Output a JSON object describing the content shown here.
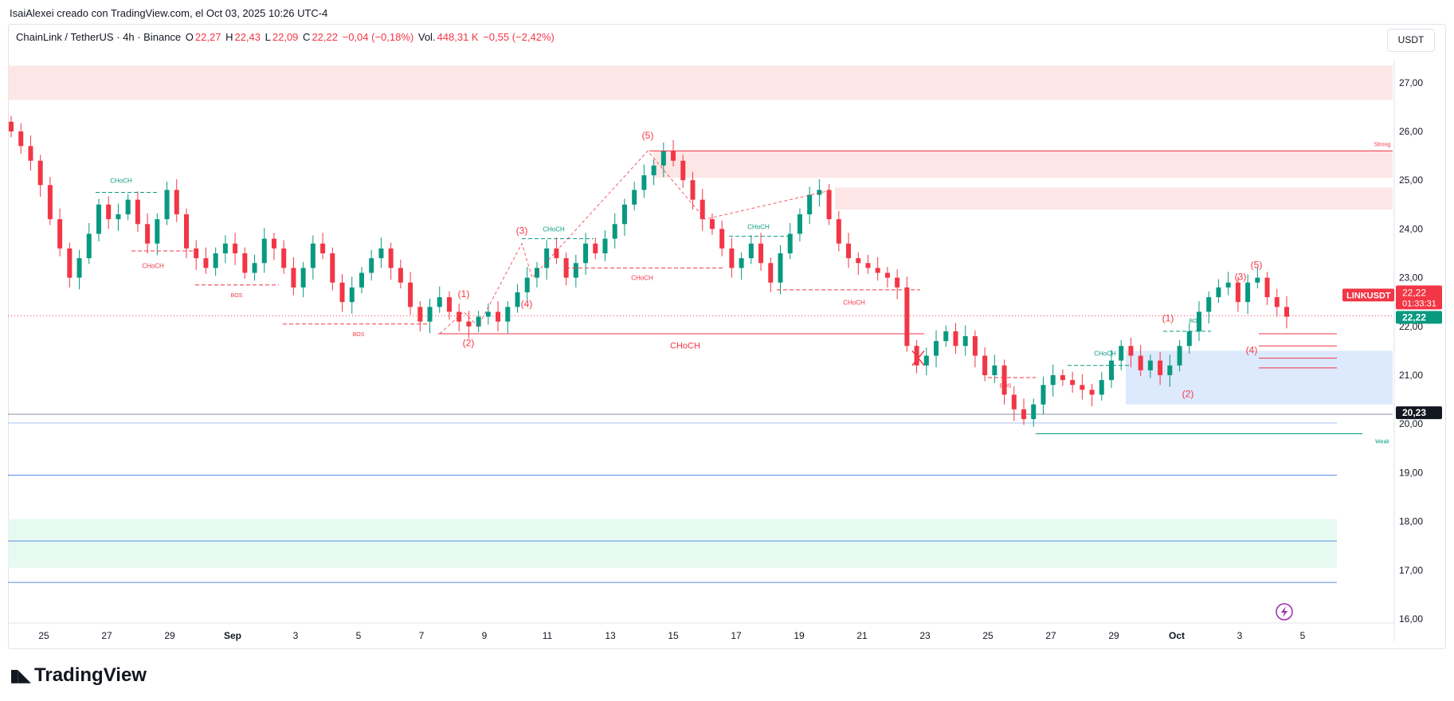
{
  "header": {
    "credit": "IsaiAlexei creado con TradingView.com, el Oct 03, 2025 10:26 UTC-4"
  },
  "legend": {
    "symbol": "ChainLink / TetherUS · 4h · Binance",
    "o_label": "O",
    "o": "22,27",
    "h_label": "H",
    "h": "22,43",
    "l_label": "L",
    "l": "22,09",
    "c_label": "C",
    "c": "22,22",
    "change": "−0,04 (−0,18%)",
    "vol_label": "Vol.",
    "vol": "448,31 K",
    "vol_change": "−0,55 (−2,42%)"
  },
  "currency_button": "USDT",
  "brand": "TradingView",
  "colors": {
    "up": "#089981",
    "down": "#f23645",
    "supply_zone": "#fde2e2",
    "demand_zone": "#e3f9ef",
    "blue_zone": "#d7e5fd",
    "blue_line": "#5b8ce6"
  },
  "chart_data": {
    "type": "candlestick",
    "timeframe": "4h",
    "ylim": [
      15.75,
      27.5
    ],
    "price_ticks": [
      "16,00",
      "17,00",
      "18,00",
      "19,00",
      "20,00",
      "21,00",
      "22,00",
      "23,00",
      "24,00",
      "25,00",
      "26,00",
      "27,00"
    ],
    "x_ticks": [
      "25",
      "27",
      "29",
      "Sep",
      "3",
      "5",
      "7",
      "9",
      "11",
      "13",
      "15",
      "17",
      "19",
      "21",
      "23",
      "25",
      "27",
      "29",
      "Oct",
      "3",
      "5"
    ],
    "last_price": {
      "symbol": "LINKUSDT",
      "price": "22,22",
      "countdown": "01:33:31",
      "value": 22.22
    },
    "marker_price": {
      "label": "22,22",
      "value": 22.22
    },
    "level_price": {
      "label": "20,23",
      "value": 20.23
    },
    "zones": [
      {
        "type": "supply",
        "from": 26.65,
        "to": 27.35
      },
      {
        "type": "supply",
        "from": 25.05,
        "to": 25.6
      },
      {
        "type": "supply",
        "from": 24.4,
        "to": 24.85
      },
      {
        "type": "demand",
        "from": 17.05,
        "to": 18.05
      },
      {
        "type": "fvg",
        "from": 20.4,
        "to": 21.5
      }
    ],
    "horizontal_lines": [
      20.2,
      20.02,
      18.95,
      17.6,
      16.75,
      19.8
    ],
    "structure_labels": {
      "choch": "CHoCH",
      "bos": "BOS",
      "strong": "Strong",
      "weak": "Weak",
      "w1": "(1)",
      "w2": "(2)",
      "w3": "(3)",
      "w4": "(4)",
      "w5": "(5)"
    },
    "series_close": [
      26.0,
      25.7,
      25.4,
      24.9,
      24.2,
      23.6,
      23.0,
      23.4,
      23.9,
      24.5,
      24.2,
      24.3,
      24.6,
      24.1,
      23.7,
      24.2,
      24.8,
      24.3,
      23.6,
      23.4,
      23.2,
      23.5,
      23.7,
      23.5,
      23.1,
      23.3,
      23.8,
      23.6,
      23.2,
      22.8,
      23.2,
      23.7,
      23.5,
      22.9,
      22.5,
      22.8,
      23.1,
      23.4,
      23.6,
      23.2,
      22.9,
      22.4,
      22.1,
      22.4,
      22.6,
      22.3,
      22.1,
      22.0,
      22.2,
      22.3,
      22.1,
      22.4,
      22.7,
      23.0,
      23.2,
      23.6,
      23.4,
      23.0,
      23.3,
      23.7,
      23.5,
      23.8,
      24.1,
      24.5,
      24.8,
      25.1,
      25.3,
      25.6,
      25.4,
      25.0,
      24.6,
      24.2,
      24.0,
      23.6,
      23.2,
      23.4,
      23.7,
      23.3,
      22.9,
      23.5,
      23.9,
      24.3,
      24.7,
      24.8,
      24.2,
      23.7,
      23.4,
      23.3,
      23.2,
      23.1,
      23.0,
      22.8,
      21.6,
      21.2,
      21.4,
      21.7,
      21.9,
      21.6,
      21.8,
      21.4,
      21.0,
      21.2,
      20.6,
      20.3,
      20.1,
      20.4,
      20.8,
      21.0,
      20.9,
      20.8,
      20.7,
      20.6,
      20.9,
      21.3,
      21.6,
      21.4,
      21.1,
      21.3,
      21.0,
      21.2,
      21.6,
      21.9,
      22.3,
      22.6,
      22.8,
      22.9,
      22.5,
      22.9,
      23.0,
      22.6,
      22.4,
      22.2
    ]
  }
}
